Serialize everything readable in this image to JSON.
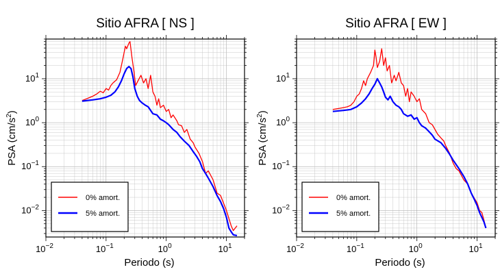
{
  "chart_data": [
    {
      "type": "line",
      "title": "Sitio AFRA [ NS ]",
      "xlabel": "Periodo (s)",
      "ylabel_main": "PSA (cm/s",
      "ylabel_sup": "2",
      "ylabel_close": ")",
      "x_scale": "log",
      "y_scale": "log",
      "xlim": [
        0.01,
        20
      ],
      "ylim": [
        0.0025,
        80
      ],
      "grid": true,
      "legend_position": "bottom-left",
      "x_ticks": [
        {
          "value": 0.01,
          "base": "10",
          "exp": "−2"
        },
        {
          "value": 0.1,
          "base": "10",
          "exp": "−1"
        },
        {
          "value": 1,
          "base": "10",
          "exp": "0"
        },
        {
          "value": 10,
          "base": "10",
          "exp": "1"
        }
      ],
      "y_ticks": [
        {
          "value": 0.01,
          "base": "10",
          "exp": "−2"
        },
        {
          "value": 0.1,
          "base": "10",
          "exp": "−1"
        },
        {
          "value": 1,
          "base": "10",
          "exp": "0"
        },
        {
          "value": 10,
          "base": "10",
          "exp": "1"
        }
      ],
      "series": [
        {
          "name": "0% amort.",
          "color": "#ff0000",
          "points": [
            [
              0.04,
              3.2
            ],
            [
              0.05,
              3.6
            ],
            [
              0.06,
              4.0
            ],
            [
              0.07,
              4.5
            ],
            [
              0.08,
              5.2
            ],
            [
              0.09,
              4.8
            ],
            [
              0.1,
              6.0
            ],
            [
              0.11,
              5.5
            ],
            [
              0.12,
              7.0
            ],
            [
              0.13,
              8.0
            ],
            [
              0.15,
              9.5
            ],
            [
              0.17,
              14
            ],
            [
              0.19,
              28
            ],
            [
              0.2,
              40
            ],
            [
              0.21,
              55
            ],
            [
              0.22,
              48
            ],
            [
              0.24,
              65
            ],
            [
              0.25,
              70
            ],
            [
              0.27,
              30
            ],
            [
              0.29,
              15
            ],
            [
              0.31,
              7
            ],
            [
              0.34,
              9
            ],
            [
              0.38,
              12
            ],
            [
              0.42,
              8
            ],
            [
              0.46,
              10
            ],
            [
              0.5,
              6
            ],
            [
              0.55,
              12
            ],
            [
              0.6,
              5
            ],
            [
              0.65,
              4
            ],
            [
              0.7,
              2.5
            ],
            [
              0.75,
              3.5
            ],
            [
              0.8,
              2.2
            ],
            [
              0.9,
              2.5
            ],
            [
              1.0,
              1.8
            ],
            [
              1.1,
              2.0
            ],
            [
              1.2,
              1.3
            ],
            [
              1.3,
              1.5
            ],
            [
              1.5,
              1.1
            ],
            [
              1.6,
              0.9
            ],
            [
              1.8,
              0.85
            ],
            [
              2.0,
              0.6
            ],
            [
              2.2,
              0.7
            ],
            [
              2.5,
              0.42
            ],
            [
              2.8,
              0.35
            ],
            [
              3.0,
              0.28
            ],
            [
              3.5,
              0.2
            ],
            [
              4.0,
              0.13
            ],
            [
              4.5,
              0.07
            ],
            [
              5.0,
              0.08
            ],
            [
              6.0,
              0.05
            ],
            [
              7.0,
              0.025
            ],
            [
              8.0,
              0.022
            ],
            [
              10,
              0.01
            ],
            [
              12,
              0.0045
            ],
            [
              13,
              0.0035
            ],
            [
              15,
              0.0045
            ]
          ]
        },
        {
          "name": "5% amort.",
          "color": "#0000ff",
          "points": [
            [
              0.04,
              3.1
            ],
            [
              0.06,
              3.3
            ],
            [
              0.08,
              3.5
            ],
            [
              0.1,
              3.8
            ],
            [
              0.12,
              4.2
            ],
            [
              0.14,
              5
            ],
            [
              0.16,
              6.5
            ],
            [
              0.18,
              9
            ],
            [
              0.2,
              13
            ],
            [
              0.22,
              17
            ],
            [
              0.24,
              19
            ],
            [
              0.26,
              17
            ],
            [
              0.28,
              11
            ],
            [
              0.3,
              6
            ],
            [
              0.33,
              4
            ],
            [
              0.36,
              3.2
            ],
            [
              0.4,
              2.8
            ],
            [
              0.45,
              2.5
            ],
            [
              0.5,
              2.3
            ],
            [
              0.6,
              1.6
            ],
            [
              0.7,
              1.5
            ],
            [
              0.8,
              1.2
            ],
            [
              0.9,
              1.1
            ],
            [
              1.0,
              1.0
            ],
            [
              1.1,
              0.9
            ],
            [
              1.3,
              0.7
            ],
            [
              1.5,
              0.6
            ],
            [
              1.7,
              0.48
            ],
            [
              2.0,
              0.38
            ],
            [
              2.4,
              0.3
            ],
            [
              2.8,
              0.22
            ],
            [
              3.2,
              0.17
            ],
            [
              3.6,
              0.13
            ],
            [
              4.0,
              0.09
            ],
            [
              4.5,
              0.07
            ],
            [
              5.0,
              0.055
            ],
            [
              6.0,
              0.035
            ],
            [
              7.0,
              0.022
            ],
            [
              8.0,
              0.016
            ],
            [
              9.0,
              0.011
            ],
            [
              10,
              0.007
            ],
            [
              11,
              0.004
            ],
            [
              12,
              0.0033
            ],
            [
              13,
              0.0028
            ],
            [
              15,
              0.0027
            ]
          ]
        }
      ]
    },
    {
      "type": "line",
      "title": "Sitio AFRA [ EW ]",
      "xlabel": "Periodo (s)",
      "ylabel_main": "PSA (cm/s",
      "ylabel_sup": "2",
      "ylabel_close": ")",
      "x_scale": "log",
      "y_scale": "log",
      "xlim": [
        0.01,
        20
      ],
      "ylim": [
        0.0025,
        80
      ],
      "grid": true,
      "legend_position": "bottom-left",
      "x_ticks": [
        {
          "value": 0.01,
          "base": "10",
          "exp": "−2"
        },
        {
          "value": 0.1,
          "base": "10",
          "exp": "−1"
        },
        {
          "value": 1,
          "base": "10",
          "exp": "0"
        },
        {
          "value": 10,
          "base": "10",
          "exp": "1"
        }
      ],
      "y_ticks": [
        {
          "value": 0.01,
          "base": "10",
          "exp": "−2"
        },
        {
          "value": 0.1,
          "base": "10",
          "exp": "−1"
        },
        {
          "value": 1,
          "base": "10",
          "exp": "0"
        },
        {
          "value": 10,
          "base": "10",
          "exp": "1"
        }
      ],
      "series": [
        {
          "name": "0% amort.",
          "color": "#ff0000",
          "points": [
            [
              0.04,
              2.0
            ],
            [
              0.05,
              2.1
            ],
            [
              0.06,
              2.2
            ],
            [
              0.07,
              2.3
            ],
            [
              0.08,
              2.5
            ],
            [
              0.09,
              3
            ],
            [
              0.1,
              4
            ],
            [
              0.11,
              4.5
            ],
            [
              0.12,
              6
            ],
            [
              0.13,
              9
            ],
            [
              0.14,
              7
            ],
            [
              0.15,
              10
            ],
            [
              0.17,
              14
            ],
            [
              0.19,
              20
            ],
            [
              0.2,
              45
            ],
            [
              0.21,
              30
            ],
            [
              0.22,
              18
            ],
            [
              0.24,
              25
            ],
            [
              0.25,
              35
            ],
            [
              0.26,
              48
            ],
            [
              0.28,
              20
            ],
            [
              0.3,
              30
            ],
            [
              0.32,
              15
            ],
            [
              0.35,
              20
            ],
            [
              0.38,
              8
            ],
            [
              0.42,
              12
            ],
            [
              0.45,
              9
            ],
            [
              0.5,
              14
            ],
            [
              0.55,
              8
            ],
            [
              0.6,
              7
            ],
            [
              0.65,
              4
            ],
            [
              0.7,
              6
            ],
            [
              0.75,
              3
            ],
            [
              0.8,
              5
            ],
            [
              0.9,
              4
            ],
            [
              1.0,
              3
            ],
            [
              1.1,
              3.5
            ],
            [
              1.2,
              2
            ],
            [
              1.4,
              1.6
            ],
            [
              1.6,
              1.0
            ],
            [
              1.8,
              0.9
            ],
            [
              2.0,
              0.7
            ],
            [
              2.2,
              0.55
            ],
            [
              2.5,
              0.45
            ],
            [
              2.8,
              0.38
            ],
            [
              3.0,
              0.3
            ],
            [
              3.5,
              0.2
            ],
            [
              4.0,
              0.12
            ],
            [
              4.5,
              0.09
            ],
            [
              5.0,
              0.08
            ],
            [
              6.0,
              0.05
            ],
            [
              7.0,
              0.04
            ],
            [
              8.0,
              0.025
            ],
            [
              10,
              0.015
            ],
            [
              11,
              0.01
            ],
            [
              12,
              0.009
            ],
            [
              13,
              0.006
            ],
            [
              14,
              0.004
            ]
          ]
        },
        {
          "name": "5% amort.",
          "color": "#0000ff",
          "points": [
            [
              0.04,
              1.8
            ],
            [
              0.06,
              1.9
            ],
            [
              0.08,
              2.0
            ],
            [
              0.1,
              2.3
            ],
            [
              0.12,
              2.8
            ],
            [
              0.14,
              3.5
            ],
            [
              0.16,
              4.5
            ],
            [
              0.18,
              6
            ],
            [
              0.2,
              7.5
            ],
            [
              0.22,
              10
            ],
            [
              0.24,
              8
            ],
            [
              0.26,
              6.5
            ],
            [
              0.28,
              5
            ],
            [
              0.3,
              3.8
            ],
            [
              0.33,
              3.3
            ],
            [
              0.36,
              4
            ],
            [
              0.4,
              3
            ],
            [
              0.45,
              2.5
            ],
            [
              0.5,
              2.3
            ],
            [
              0.55,
              2
            ],
            [
              0.6,
              1.6
            ],
            [
              0.7,
              1.4
            ],
            [
              0.8,
              1.5
            ],
            [
              0.9,
              1.2
            ],
            [
              1.0,
              1.3
            ],
            [
              1.1,
              1.0
            ],
            [
              1.2,
              0.85
            ],
            [
              1.4,
              0.75
            ],
            [
              1.6,
              0.62
            ],
            [
              1.8,
              0.52
            ],
            [
              2.0,
              0.42
            ],
            [
              2.5,
              0.35
            ],
            [
              3.0,
              0.26
            ],
            [
              3.5,
              0.19
            ],
            [
              4.0,
              0.14
            ],
            [
              5.0,
              0.09
            ],
            [
              6.0,
              0.06
            ],
            [
              7.0,
              0.04
            ],
            [
              8.0,
              0.025
            ],
            [
              9.0,
              0.018
            ],
            [
              10,
              0.013
            ],
            [
              11,
              0.009
            ],
            [
              12,
              0.007
            ],
            [
              13,
              0.0055
            ],
            [
              14,
              0.004
            ]
          ]
        }
      ]
    }
  ]
}
